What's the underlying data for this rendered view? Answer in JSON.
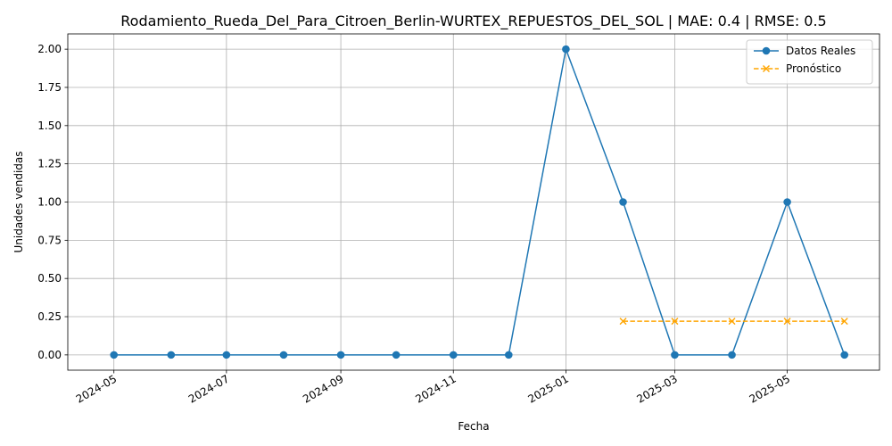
{
  "chart_data": {
    "type": "line",
    "title": "Rodamiento_Rueda_Del_Para_Citroen_Berlin-WURTEX_REPUESTOS_DEL_SOL | MAE: 0.4 | RMSE: 0.5",
    "xlabel": "Fecha",
    "ylabel": "Unidades vendidas",
    "ylim": [
      -0.1,
      2.1
    ],
    "xlim": [
      "2024-04-06",
      "2025-06-20"
    ],
    "grid": true,
    "legend_position": "top-right",
    "y_ticks": [
      0.0,
      0.25,
      0.5,
      0.75,
      1.0,
      1.25,
      1.5,
      1.75,
      2.0
    ],
    "y_tick_labels": [
      "0.00",
      "0.25",
      "0.50",
      "0.75",
      "1.00",
      "1.25",
      "1.50",
      "1.75",
      "2.00"
    ],
    "x_ticks": [
      "2024-05-01",
      "2024-07-01",
      "2024-09-01",
      "2024-11-01",
      "2025-01-01",
      "2025-03-01",
      "2025-05-01"
    ],
    "x_tick_labels": [
      "2024-05",
      "2024-07",
      "2024-09",
      "2024-11",
      "2025-01",
      "2025-03",
      "2025-05"
    ],
    "series": [
      {
        "name": "Datos Reales",
        "color": "#1f77b4",
        "style": "solid",
        "marker": "circle",
        "x": [
          "2024-05-01",
          "2024-06-01",
          "2024-07-01",
          "2024-08-01",
          "2024-09-01",
          "2024-10-01",
          "2024-11-01",
          "2024-12-01",
          "2025-01-01",
          "2025-02-01",
          "2025-03-01",
          "2025-04-01",
          "2025-05-01",
          "2025-06-01"
        ],
        "values": [
          0,
          0,
          0,
          0,
          0,
          0,
          0,
          0,
          2,
          1,
          0,
          0,
          1,
          0
        ]
      },
      {
        "name": "Pronóstico",
        "color": "#ffa500",
        "style": "dashed",
        "marker": "x",
        "x": [
          "2025-02-01",
          "2025-03-01",
          "2025-04-01",
          "2025-05-01",
          "2025-06-01"
        ],
        "values": [
          0.22,
          0.22,
          0.22,
          0.22,
          0.22
        ]
      }
    ]
  }
}
